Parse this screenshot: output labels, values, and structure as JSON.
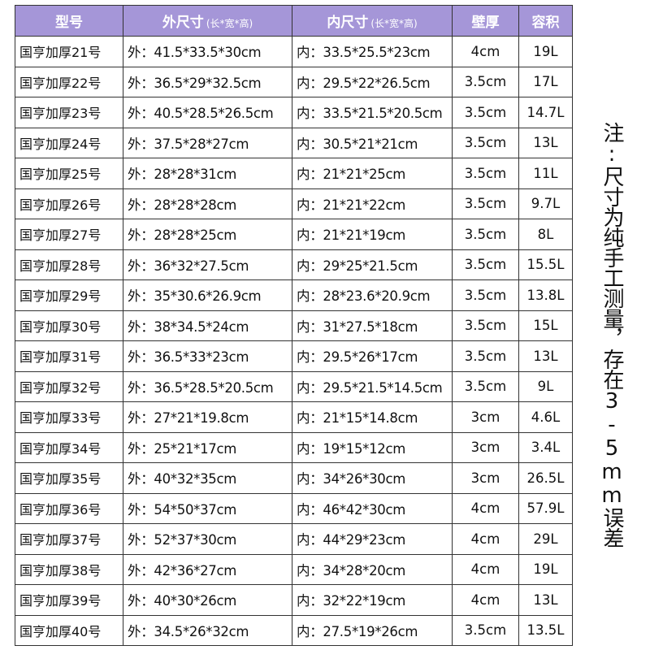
{
  "header": {
    "model": "型号",
    "outer": "外尺寸",
    "outer_hint": "(长*宽*高)",
    "inner": "内尺寸",
    "inner_hint": "(长*宽*高)",
    "wall": "壁厚",
    "capacity": "容积"
  },
  "rows": [
    {
      "model": "国亨加厚21号",
      "outer": "外：41.5*33.5*30cm",
      "inner": "内：33.5*25.5*23cm",
      "wall": "4cm",
      "capacity": "19L"
    },
    {
      "model": "国亨加厚22号",
      "outer": "外：36.5*29*32.5cm",
      "inner": "内：29.5*22*26.5cm",
      "wall": "3.5cm",
      "capacity": "17L"
    },
    {
      "model": "国亨加厚23号",
      "outer": "外：40.5*28.5*26.5cm",
      "inner": "内：33.5*21.5*20.5cm",
      "wall": "3.5cm",
      "capacity": "14.7L"
    },
    {
      "model": "国亨加厚24号",
      "outer": "外：37.5*28*27cm",
      "inner": "内：30.5*21*21cm",
      "wall": "3.5cm",
      "capacity": "13L"
    },
    {
      "model": "国亨加厚25号",
      "outer": "外：28*28*31cm",
      "inner": "内：21*21*25cm",
      "wall": "3.5cm",
      "capacity": "11L"
    },
    {
      "model": "国亨加厚26号",
      "outer": "外：28*28*28cm",
      "inner": "内：21*21*22cm",
      "wall": "3.5cm",
      "capacity": "9.7L"
    },
    {
      "model": "国亨加厚27号",
      "outer": "外：28*28*25cm",
      "inner": "内：21*21*19cm",
      "wall": "3.5cm",
      "capacity": "8L"
    },
    {
      "model": "国亨加厚28号",
      "outer": "外：36*32*27.5cm",
      "inner": "内：29*25*21.5cm",
      "wall": "3.5cm",
      "capacity": "15.5L"
    },
    {
      "model": "国亨加厚29号",
      "outer": "外：35*30.6*26.9cm",
      "inner": "内：28*23.6*20.9cm",
      "wall": "3.5cm",
      "capacity": "13.8L"
    },
    {
      "model": "国亨加厚30号",
      "outer": "外：38*34.5*24cm",
      "inner": "内：31*27.5*18cm",
      "wall": "3.5cm",
      "capacity": "15L"
    },
    {
      "model": "国亨加厚31号",
      "outer": "外：36.5*33*23cm",
      "inner": "内：29.5*26*17cm",
      "wall": "3.5cm",
      "capacity": "13L"
    },
    {
      "model": "国亨加厚32号",
      "outer": "外：36.5*28.5*20.5cm",
      "inner": "内：29.5*21.5*14.5cm",
      "wall": "3.5cm",
      "capacity": "9L"
    },
    {
      "model": "国亨加厚33号",
      "outer": "外：27*21*19.8cm",
      "inner": "内：21*15*14.8cm",
      "wall": "3cm",
      "capacity": "4.6L"
    },
    {
      "model": "国亨加厚34号",
      "outer": "外：25*21*17cm",
      "inner": "内：19*15*12cm",
      "wall": "3cm",
      "capacity": "3.4L"
    },
    {
      "model": "国亨加厚35号",
      "outer": "外：40*32*35cm",
      "inner": "内：34*26*30cm",
      "wall": "3cm",
      "capacity": "26.5L"
    },
    {
      "model": "国亨加厚36号",
      "outer": "外：54*50*37cm",
      "inner": "内：46*42*30cm",
      "wall": "4cm",
      "capacity": "57.9L"
    },
    {
      "model": "国亨加厚37号",
      "outer": "外：52*37*30cm",
      "inner": "内：44*29*23cm",
      "wall": "4cm",
      "capacity": "29L"
    },
    {
      "model": "国亨加厚38号",
      "outer": "外：42*36*27cm",
      "inner": "内：34*28*20cm",
      "wall": "4cm",
      "capacity": "19L"
    },
    {
      "model": "国亨加厚39号",
      "outer": "外：40*30*26cm",
      "inner": "内：32*22*19cm",
      "wall": "4cm",
      "capacity": "13L"
    },
    {
      "model": "国亨加厚40号",
      "outer": "外：34.5*26*32cm",
      "inner": "内：27.5*19*26cm",
      "wall": "3.5cm",
      "capacity": "13.5L"
    }
  ],
  "note": "注:尺寸为纯手工测量，存在3-5mm误差",
  "colors": {
    "header_bg": "#a596d8",
    "header_text": "#ffffff",
    "border": "#333333"
  }
}
